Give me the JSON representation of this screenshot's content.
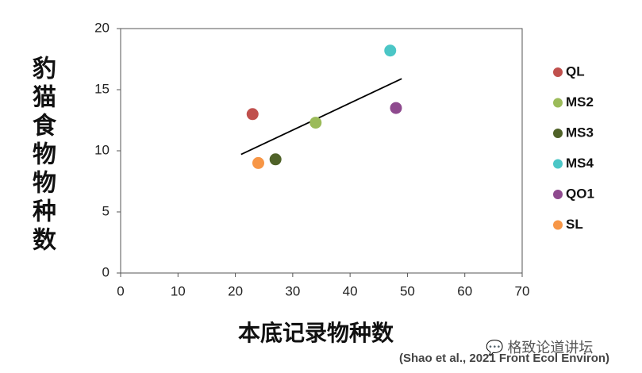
{
  "chart_data": {
    "type": "scatter",
    "x_label": "本底记录物种数",
    "y_label": "豹猫食物物种数",
    "xlim": [
      0,
      70
    ],
    "xticks": [
      0,
      10,
      20,
      30,
      40,
      50,
      60,
      70
    ],
    "ylim": [
      0,
      20
    ],
    "yticks": [
      0,
      5,
      10,
      15,
      20
    ],
    "series": [
      {
        "name": "QL",
        "color": "#c0504d",
        "x": [
          23
        ],
        "values": [
          13
        ]
      },
      {
        "name": "MS2",
        "color": "#9bbb59",
        "x": [
          34
        ],
        "values": [
          12.3
        ]
      },
      {
        "name": "MS3",
        "color": "#4f6228",
        "x": [
          27
        ],
        "values": [
          9.3
        ]
      },
      {
        "name": "MS4",
        "color": "#4bc6c6",
        "x": [
          47
        ],
        "values": [
          18.2
        ]
      },
      {
        "name": "QO1",
        "color": "#8e4a8e",
        "x": [
          48
        ],
        "values": [
          13.5
        ]
      },
      {
        "name": "SL",
        "color": "#f79646",
        "x": [
          24
        ],
        "values": [
          9.0
        ]
      }
    ],
    "trendline": {
      "color": "#000000",
      "x": [
        21,
        49
      ],
      "values": [
        9.7,
        15.9
      ]
    },
    "legend": "right",
    "annotations": [
      "格致论道讲坛",
      "(Shao et al., 2021 Front Ecol Environ)"
    ]
  }
}
